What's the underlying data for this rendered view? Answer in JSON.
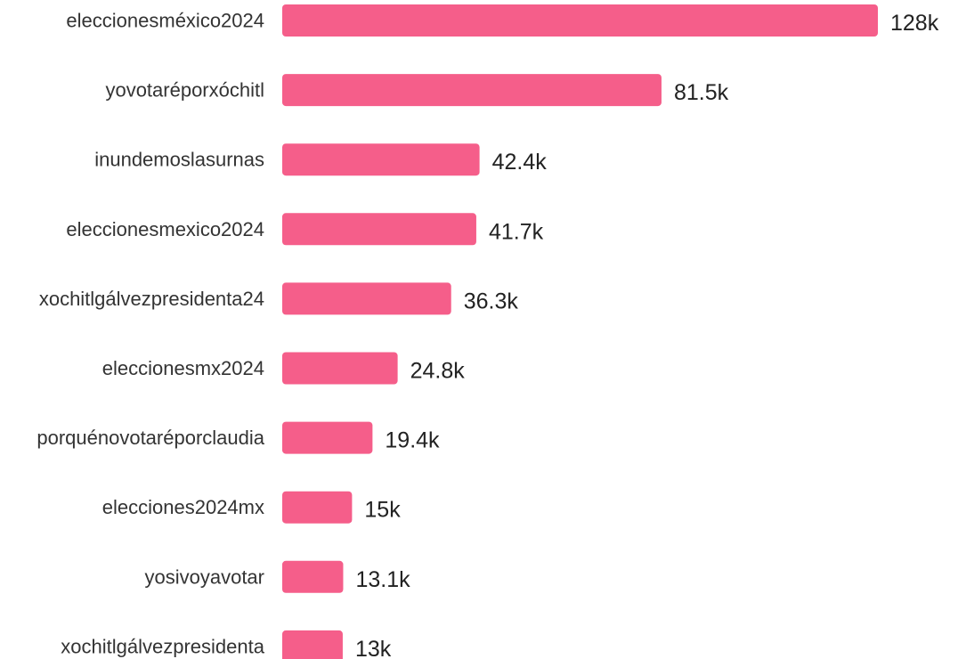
{
  "chart_data": {
    "type": "bar",
    "orientation": "horizontal",
    "categories": [
      "eleccionesméxico2024",
      "yovotaréporxóchitl",
      "inundemoslasurnas",
      "eleccionesmexico2024",
      "xochitlgálvezpresidenta24",
      "eleccionesmx2024",
      "porquénovotaréporclaudia",
      "elecciones2024mx",
      "yosivoyavotar",
      "xochitlgálvezpresidenta"
    ],
    "values": [
      128000,
      81500,
      42400,
      41700,
      36300,
      24800,
      19400,
      15000,
      13100,
      13000
    ],
    "value_labels": [
      "128k",
      "81.5k",
      "42.4k",
      "41.7k",
      "36.3k",
      "24.8k",
      "19.4k",
      "15k",
      "13.1k",
      "13k"
    ],
    "title": "",
    "xlabel": "",
    "ylabel": "",
    "xlim": [
      0,
      128000
    ],
    "grid": false,
    "legend": "none",
    "bar_color": "#f55e8a"
  }
}
